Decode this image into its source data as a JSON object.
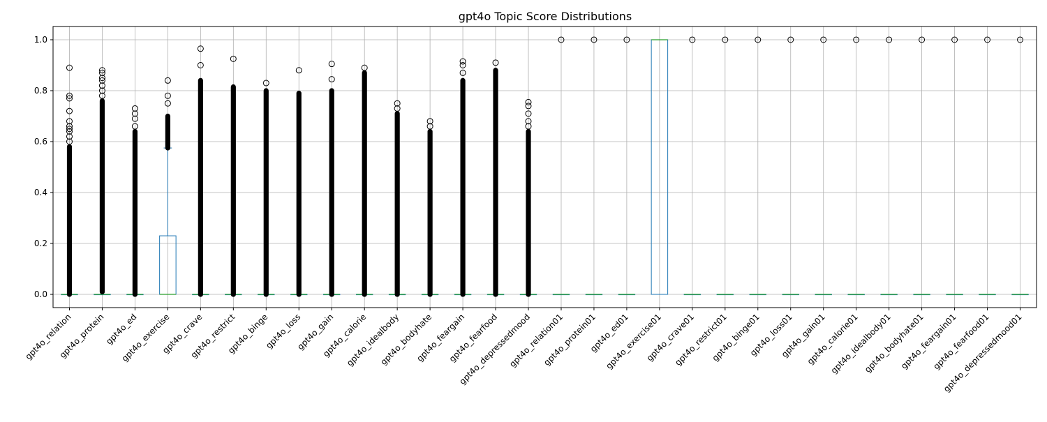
{
  "chart_data": {
    "type": "box",
    "title": "gpt4o Topic Score Distributions",
    "xlabel": "",
    "ylabel": "",
    "ylim": [
      -0.052,
      1.052
    ],
    "yticks": [
      "0.0",
      "0.2",
      "0.4",
      "0.6",
      "0.8",
      "1.0"
    ],
    "grid": true,
    "legend": "none",
    "colors": {
      "box": "#1f77b4",
      "median": "#2ca02c",
      "whisker": "#1f77b4",
      "flier": "#000000",
      "grid": "#b0b0b0",
      "axis": "#000000"
    },
    "categories": [
      "gpt4o_relation",
      "gpt4o_protein",
      "gpt4o_ed",
      "gpt4o_exercise",
      "gpt4o_crave",
      "gpt4o_restrict",
      "gpt4o_binge",
      "gpt4o_loss",
      "gpt4o_gain",
      "gpt4o_calorie",
      "gpt4o_idealbody",
      "gpt4o_bodyhate",
      "gpt4o_feargain",
      "gpt4o_fearfood",
      "gpt4o_depressedmood",
      "gpt4o_relation01",
      "gpt4o_protein01",
      "gpt4o_ed01",
      "gpt4o_exercise01",
      "gpt4o_crave01",
      "gpt4o_restrict01",
      "gpt4o_binge01",
      "gpt4o_loss01",
      "gpt4o_gain01",
      "gpt4o_calorie01",
      "gpt4o_idealbody01",
      "gpt4o_bodyhate01",
      "gpt4o_feargain01",
      "gpt4o_fearfood01",
      "gpt4o_depressedmood01"
    ],
    "boxes": [
      {
        "q1": 0,
        "median": 0,
        "q3": 0,
        "whislo": 0,
        "whishi": 0,
        "flier_min": 0.0,
        "flier_max": 0.58,
        "sparse_fliers": [
          0.6,
          0.62,
          0.64,
          0.65,
          0.66,
          0.68,
          0.72,
          0.77,
          0.78,
          0.89
        ]
      },
      {
        "q1": 0,
        "median": 0,
        "q3": 0,
        "whislo": 0,
        "whishi": 0,
        "flier_min": 0.01,
        "flier_max": 0.76,
        "sparse_fliers": [
          0.78,
          0.8,
          0.82,
          0.84,
          0.85,
          0.87,
          0.88
        ]
      },
      {
        "q1": 0,
        "median": 0,
        "q3": 0,
        "whislo": 0,
        "whishi": 0,
        "flier_min": 0.0,
        "flier_max": 0.64,
        "sparse_fliers": [
          0.66,
          0.69,
          0.71,
          0.73
        ]
      },
      {
        "q1": 0,
        "median": 0,
        "q3": 0.23,
        "whislo": 0,
        "whishi": 0.575,
        "flier_min": 0.575,
        "flier_max": 0.7,
        "sparse_fliers": [
          0.75,
          0.78,
          0.84
        ]
      },
      {
        "q1": 0,
        "median": 0,
        "q3": 0,
        "whislo": 0,
        "whishi": 0,
        "flier_min": 0.0,
        "flier_max": 0.84,
        "sparse_fliers": [
          0.9,
          0.965
        ]
      },
      {
        "q1": 0,
        "median": 0,
        "q3": 0,
        "whislo": 0,
        "whishi": 0,
        "flier_min": 0.0,
        "flier_max": 0.815,
        "sparse_fliers": [
          0.925
        ]
      },
      {
        "q1": 0,
        "median": 0,
        "q3": 0,
        "whislo": 0,
        "whishi": 0,
        "flier_min": 0.0,
        "flier_max": 0.8,
        "sparse_fliers": [
          0.83
        ]
      },
      {
        "q1": 0,
        "median": 0,
        "q3": 0,
        "whislo": 0,
        "whishi": 0,
        "flier_min": 0.0,
        "flier_max": 0.79,
        "sparse_fliers": [
          0.88
        ]
      },
      {
        "q1": 0,
        "median": 0,
        "q3": 0,
        "whislo": 0,
        "whishi": 0,
        "flier_min": 0.0,
        "flier_max": 0.8,
        "sparse_fliers": [
          0.845,
          0.905
        ]
      },
      {
        "q1": 0,
        "median": 0,
        "q3": 0,
        "whislo": 0,
        "whishi": 0,
        "flier_min": 0.0,
        "flier_max": 0.87,
        "sparse_fliers": [
          0.89
        ]
      },
      {
        "q1": 0,
        "median": 0,
        "q3": 0,
        "whislo": 0,
        "whishi": 0,
        "flier_min": 0.0,
        "flier_max": 0.71,
        "sparse_fliers": [
          0.73,
          0.75
        ]
      },
      {
        "q1": 0,
        "median": 0,
        "q3": 0,
        "whislo": 0,
        "whishi": 0,
        "flier_min": 0.0,
        "flier_max": 0.64,
        "sparse_fliers": [
          0.66,
          0.68
        ]
      },
      {
        "q1": 0,
        "median": 0,
        "q3": 0,
        "whislo": 0,
        "whishi": 0,
        "flier_min": 0.0,
        "flier_max": 0.84,
        "sparse_fliers": [
          0.87,
          0.9,
          0.915
        ]
      },
      {
        "q1": 0,
        "median": 0,
        "q3": 0,
        "whislo": 0,
        "whishi": 0,
        "flier_min": 0.0,
        "flier_max": 0.88,
        "sparse_fliers": [
          0.91
        ]
      },
      {
        "q1": 0,
        "median": 0,
        "q3": 0,
        "whislo": 0,
        "whishi": 0,
        "flier_min": 0.0,
        "flier_max": 0.64,
        "sparse_fliers": [
          0.66,
          0.68,
          0.71,
          0.74,
          0.755
        ]
      },
      {
        "q1": 0,
        "median": 0,
        "q3": 0,
        "whislo": 0,
        "whishi": 0,
        "sparse_fliers": [
          1.0
        ]
      },
      {
        "q1": 0,
        "median": 0,
        "q3": 0,
        "whislo": 0,
        "whishi": 0,
        "sparse_fliers": [
          1.0
        ]
      },
      {
        "q1": 0,
        "median": 0,
        "q3": 0,
        "whislo": 0,
        "whishi": 0,
        "sparse_fliers": [
          1.0
        ]
      },
      {
        "q1": 0,
        "median": 1,
        "q3": 1,
        "whislo": 0,
        "whishi": 1,
        "sparse_fliers": []
      },
      {
        "q1": 0,
        "median": 0,
        "q3": 0,
        "whislo": 0,
        "whishi": 0,
        "sparse_fliers": [
          1.0
        ]
      },
      {
        "q1": 0,
        "median": 0,
        "q3": 0,
        "whislo": 0,
        "whishi": 0,
        "sparse_fliers": [
          1.0
        ]
      },
      {
        "q1": 0,
        "median": 0,
        "q3": 0,
        "whislo": 0,
        "whishi": 0,
        "sparse_fliers": [
          1.0
        ]
      },
      {
        "q1": 0,
        "median": 0,
        "q3": 0,
        "whislo": 0,
        "whishi": 0,
        "sparse_fliers": [
          1.0
        ]
      },
      {
        "q1": 0,
        "median": 0,
        "q3": 0,
        "whislo": 0,
        "whishi": 0,
        "sparse_fliers": [
          1.0
        ]
      },
      {
        "q1": 0,
        "median": 0,
        "q3": 0,
        "whislo": 0,
        "whishi": 0,
        "sparse_fliers": [
          1.0
        ]
      },
      {
        "q1": 0,
        "median": 0,
        "q3": 0,
        "whislo": 0,
        "whishi": 0,
        "sparse_fliers": [
          1.0
        ]
      },
      {
        "q1": 0,
        "median": 0,
        "q3": 0,
        "whislo": 0,
        "whishi": 0,
        "sparse_fliers": [
          1.0
        ]
      },
      {
        "q1": 0,
        "median": 0,
        "q3": 0,
        "whislo": 0,
        "whishi": 0,
        "sparse_fliers": [
          1.0
        ]
      },
      {
        "q1": 0,
        "median": 0,
        "q3": 0,
        "whislo": 0,
        "whishi": 0,
        "sparse_fliers": [
          1.0
        ]
      },
      {
        "q1": 0,
        "median": 0,
        "q3": 0,
        "whislo": 0,
        "whishi": 0,
        "sparse_fliers": [
          1.0
        ]
      }
    ]
  }
}
